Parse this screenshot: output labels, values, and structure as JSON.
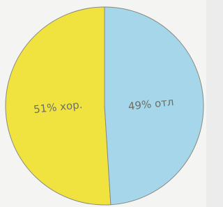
{
  "chart_data": {
    "type": "pie",
    "values": [
      51,
      49
    ],
    "value_labels": [
      "51% хор.",
      "49% отл"
    ],
    "colors": [
      "#f1e33f",
      "#a6d6ea"
    ]
  }
}
